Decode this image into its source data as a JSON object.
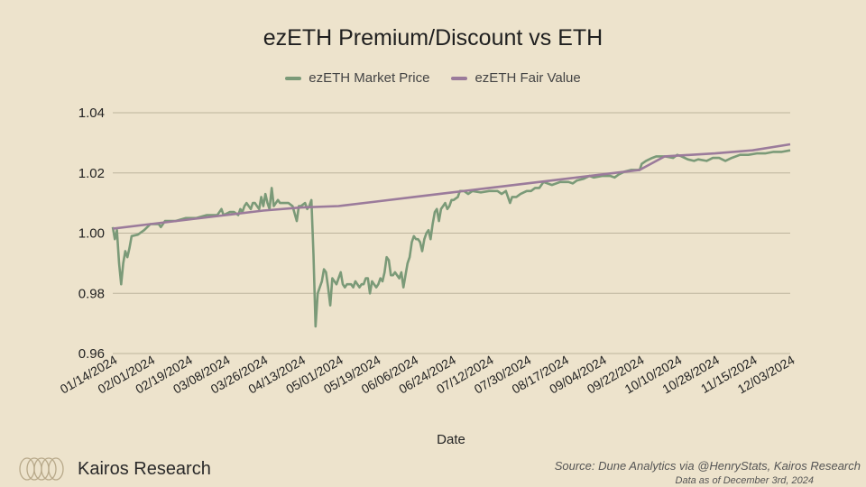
{
  "brand": {
    "name": "Kairos Research"
  },
  "footer": {
    "source": "Source: Dune Analytics via @HenryStats, Kairos Research",
    "date_note": "Data as of December 3rd, 2024"
  },
  "colors": {
    "market": "#7b9a78",
    "fair": "#9b7b9b",
    "grid": "#bdb49d"
  },
  "chart_data": {
    "type": "line",
    "title": "ezETH Premium/Discount vs ETH",
    "xlabel": "Date",
    "ylabel": "",
    "ylim": [
      0.96,
      1.04
    ],
    "yticks": [
      0.96,
      0.98,
      1.0,
      1.02,
      1.04
    ],
    "ytick_labels": [
      "0.96",
      "0.98",
      "1.00",
      "1.02",
      "1.04"
    ],
    "xlim": [
      0,
      324
    ],
    "xticks": [
      0,
      18,
      36,
      54,
      72,
      90,
      108,
      126,
      144,
      162,
      180,
      198,
      216,
      234,
      252,
      270,
      288,
      306,
      324
    ],
    "xtick_labels": [
      "01/14/2024",
      "02/01/2024",
      "02/19/2024",
      "03/08/2024",
      "03/26/2024",
      "04/13/2024",
      "05/01/2024",
      "05/19/2024",
      "06/06/2024",
      "06/24/2024",
      "07/12/2024",
      "07/30/2024",
      "08/17/2024",
      "09/04/2024",
      "09/22/2024",
      "10/10/2024",
      "10/28/2024",
      "11/15/2024",
      "12/03/2024"
    ],
    "x_units": "days since 01/14/2024",
    "series": [
      {
        "name": "ezETH Market Price",
        "points": [
          [
            0,
            1.002
          ],
          [
            1,
            0.998
          ],
          [
            2,
            1.001
          ],
          [
            3,
            0.99
          ],
          [
            4,
            0.983
          ],
          [
            5,
            0.99
          ],
          [
            6,
            0.994
          ],
          [
            7,
            0.992
          ],
          [
            8,
            0.995
          ],
          [
            9,
            0.999
          ],
          [
            12,
            0.9995
          ],
          [
            15,
            1.001
          ],
          [
            18,
            1.003
          ],
          [
            22,
            1.003
          ],
          [
            23,
            1.002
          ],
          [
            25,
            1.004
          ],
          [
            30,
            1.004
          ],
          [
            35,
            1.005
          ],
          [
            40,
            1.005
          ],
          [
            45,
            1.006
          ],
          [
            50,
            1.006
          ],
          [
            52,
            1.008
          ],
          [
            53,
            1.006
          ],
          [
            56,
            1.007
          ],
          [
            58,
            1.007
          ],
          [
            60,
            1.006
          ],
          [
            61,
            1.008
          ],
          [
            62,
            1.007
          ],
          [
            63,
            1.009
          ],
          [
            64,
            1.01
          ],
          [
            65,
            1.009
          ],
          [
            66,
            1.008
          ],
          [
            67,
            1.01
          ],
          [
            68,
            1.01
          ],
          [
            69,
            1.009
          ],
          [
            70,
            1.008
          ],
          [
            71,
            1.012
          ],
          [
            72,
            1.009
          ],
          [
            73,
            1.013
          ],
          [
            74,
            1.01
          ],
          [
            75,
            1.008
          ],
          [
            76,
            1.015
          ],
          [
            77,
            1.009
          ],
          [
            78,
            1.01
          ],
          [
            79,
            1.011
          ],
          [
            80,
            1.01
          ],
          [
            82,
            1.01
          ],
          [
            84,
            1.01
          ],
          [
            86,
            1.009
          ],
          [
            88,
            1.004
          ],
          [
            89,
            1.009
          ],
          [
            90,
            1.009
          ],
          [
            92,
            1.01
          ],
          [
            93,
            1.008
          ],
          [
            94,
            1.009
          ],
          [
            95,
            1.011
          ],
          [
            96,
            0.993
          ],
          [
            97,
            0.969
          ],
          [
            98,
            0.98
          ],
          [
            99,
            0.982
          ],
          [
            100,
            0.984
          ],
          [
            101,
            0.988
          ],
          [
            102,
            0.987
          ],
          [
            103,
            0.982
          ],
          [
            104,
            0.976
          ],
          [
            105,
            0.985
          ],
          [
            106,
            0.984
          ],
          [
            107,
            0.983
          ],
          [
            108,
            0.985
          ],
          [
            109,
            0.987
          ],
          [
            110,
            0.983
          ],
          [
            111,
            0.982
          ],
          [
            112,
            0.983
          ],
          [
            113,
            0.983
          ],
          [
            114,
            0.983
          ],
          [
            115,
            0.982
          ],
          [
            116,
            0.984
          ],
          [
            117,
            0.983
          ],
          [
            118,
            0.982
          ],
          [
            119,
            0.983
          ],
          [
            120,
            0.983
          ],
          [
            121,
            0.985
          ],
          [
            122,
            0.985
          ],
          [
            123,
            0.98
          ],
          [
            124,
            0.984
          ],
          [
            125,
            0.983
          ],
          [
            126,
            0.982
          ],
          [
            127,
            0.983
          ],
          [
            128,
            0.985
          ],
          [
            129,
            0.984
          ],
          [
            130,
            0.987
          ],
          [
            131,
            0.992
          ],
          [
            132,
            0.991
          ],
          [
            133,
            0.986
          ],
          [
            134,
            0.986
          ],
          [
            135,
            0.987
          ],
          [
            136,
            0.986
          ],
          [
            137,
            0.985
          ],
          [
            138,
            0.987
          ],
          [
            139,
            0.982
          ],
          [
            140,
            0.986
          ],
          [
            141,
            0.99
          ],
          [
            142,
            0.992
          ],
          [
            143,
            0.997
          ],
          [
            144,
            0.999
          ],
          [
            145,
            0.998
          ],
          [
            146,
            0.998
          ],
          [
            147,
            0.997
          ],
          [
            148,
            0.994
          ],
          [
            149,
            0.998
          ],
          [
            150,
            1.0
          ],
          [
            151,
            1.001
          ],
          [
            152,
            0.998
          ],
          [
            153,
            1.003
          ],
          [
            154,
            1.007
          ],
          [
            155,
            1.008
          ],
          [
            156,
            1.004
          ],
          [
            157,
            1.008
          ],
          [
            158,
            1.009
          ],
          [
            159,
            1.01
          ],
          [
            160,
            1.008
          ],
          [
            161,
            1.009
          ],
          [
            162,
            1.011
          ],
          [
            163,
            1.011
          ],
          [
            165,
            1.012
          ],
          [
            166,
            1.014
          ],
          [
            168,
            1.014
          ],
          [
            170,
            1.013
          ],
          [
            172,
            1.014
          ],
          [
            176,
            1.0135
          ],
          [
            180,
            1.014
          ],
          [
            184,
            1.014
          ],
          [
            186,
            1.013
          ],
          [
            188,
            1.014
          ],
          [
            189,
            1.012
          ],
          [
            190,
            1.01
          ],
          [
            191,
            1.012
          ],
          [
            193,
            1.012
          ],
          [
            195,
            1.013
          ],
          [
            198,
            1.014
          ],
          [
            200,
            1.014
          ],
          [
            202,
            1.015
          ],
          [
            204,
            1.015
          ],
          [
            206,
            1.017
          ],
          [
            210,
            1.016
          ],
          [
            214,
            1.017
          ],
          [
            218,
            1.017
          ],
          [
            220,
            1.0165
          ],
          [
            222,
            1.0175
          ],
          [
            225,
            1.018
          ],
          [
            228,
            1.019
          ],
          [
            230,
            1.0185
          ],
          [
            234,
            1.019
          ],
          [
            238,
            1.019
          ],
          [
            240,
            1.0185
          ],
          [
            242,
            1.0195
          ],
          [
            245,
            1.0205
          ],
          [
            248,
            1.021
          ],
          [
            250,
            1.021
          ],
          [
            252,
            1.021
          ],
          [
            253,
            1.023
          ],
          [
            255,
            1.024
          ],
          [
            258,
            1.025
          ],
          [
            260,
            1.0255
          ],
          [
            264,
            1.0255
          ],
          [
            268,
            1.025
          ],
          [
            270,
            1.026
          ],
          [
            272,
            1.0255
          ],
          [
            275,
            1.0245
          ],
          [
            278,
            1.024
          ],
          [
            280,
            1.0245
          ],
          [
            284,
            1.024
          ],
          [
            287,
            1.025
          ],
          [
            290,
            1.025
          ],
          [
            293,
            1.024
          ],
          [
            296,
            1.025
          ],
          [
            300,
            1.026
          ],
          [
            304,
            1.026
          ],
          [
            308,
            1.0265
          ],
          [
            312,
            1.0265
          ],
          [
            316,
            1.027
          ],
          [
            320,
            1.027
          ],
          [
            324,
            1.0275
          ]
        ]
      },
      {
        "name": "ezETH Fair Value",
        "points": [
          [
            0,
            1.0015
          ],
          [
            18,
            1.003
          ],
          [
            36,
            1.0045
          ],
          [
            54,
            1.006
          ],
          [
            72,
            1.0075
          ],
          [
            90,
            1.0085
          ],
          [
            108,
            1.009
          ],
          [
            126,
            1.0105
          ],
          [
            144,
            1.012
          ],
          [
            162,
            1.0135
          ],
          [
            180,
            1.015
          ],
          [
            198,
            1.0165
          ],
          [
            216,
            1.018
          ],
          [
            234,
            1.0195
          ],
          [
            252,
            1.021
          ],
          [
            264,
            1.0255
          ],
          [
            288,
            1.0265
          ],
          [
            306,
            1.0275
          ],
          [
            324,
            1.0295
          ]
        ]
      }
    ]
  }
}
